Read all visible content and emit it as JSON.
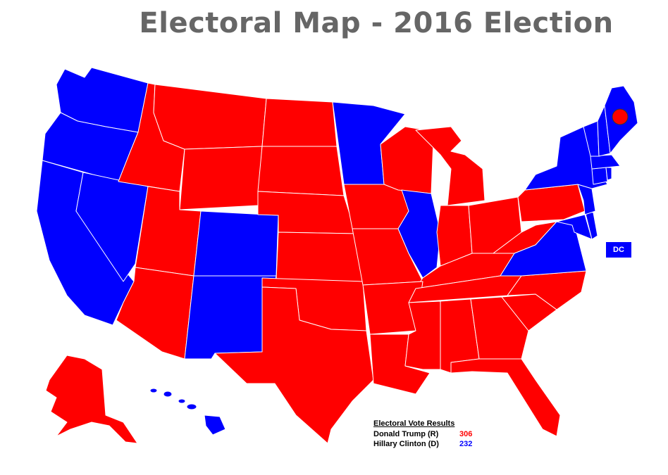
{
  "title": "Electoral Map - 2016 Election",
  "colors": {
    "republican": "#ff0000",
    "democrat": "#0000ff",
    "border": "#ffffff",
    "title": "#666666"
  },
  "dc_label": "DC",
  "legend": {
    "title": "Electoral Vote Results",
    "candidates": [
      {
        "name": "Donald Trump (R)",
        "votes": "306",
        "color": "#ff0000"
      },
      {
        "name": "Hillary Clinton (D)",
        "votes": "232",
        "color": "#0000ff"
      }
    ]
  }
}
